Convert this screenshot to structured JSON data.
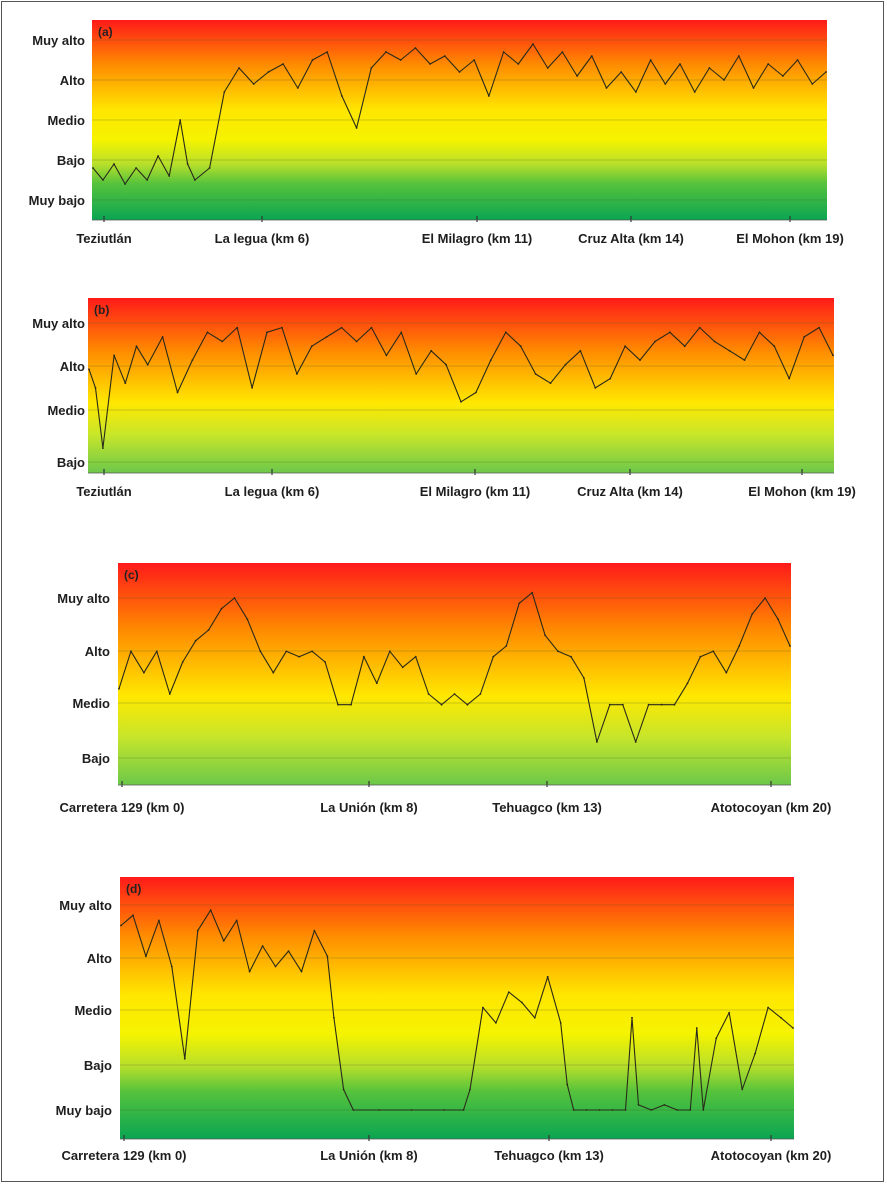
{
  "chart_data": [
    {
      "type": "line",
      "panel_label": "(a)",
      "levels": [
        "Muy alto",
        "Alto",
        "Medio",
        "Bajo",
        "Muy bajo"
      ],
      "x_ticks": [
        "Teziutlán",
        "La legua (km 6)",
        "El Milagro (km 11)",
        "Cruz Alta (km 14)",
        "El Mohon (km 19)"
      ],
      "x_tick_km": [
        0,
        6,
        11,
        14,
        19
      ],
      "xlim": [
        0,
        20
      ],
      "ylim": [
        0.5,
        5.2
      ],
      "series": [
        {
          "x": [
            0,
            0.3,
            0.6,
            0.9,
            1.2,
            1.5,
            1.8,
            2.1,
            2.4,
            2.6,
            2.8,
            3.2,
            3.6,
            4,
            4.4,
            4.8,
            5.2,
            5.6,
            6,
            6.4,
            6.8,
            7.2,
            7.6,
            8,
            8.4,
            8.8,
            9.2,
            9.6,
            10,
            10.4,
            10.8,
            11.2,
            11.6,
            12,
            12.4,
            12.8,
            13.2,
            13.6,
            14,
            14.4,
            14.8,
            15.2,
            15.6,
            16,
            16.4,
            16.8,
            17.2,
            17.6,
            18,
            18.4,
            18.8,
            19.2,
            19.6,
            20
          ],
          "y": [
            1.8,
            1.5,
            1.9,
            1.4,
            1.8,
            1.5,
            2.1,
            1.6,
            3,
            1.9,
            1.5,
            1.8,
            3.7,
            4.3,
            3.9,
            4.2,
            4.4,
            3.8,
            4.5,
            4.7,
            3.6,
            2.8,
            4.3,
            4.7,
            4.5,
            4.8,
            4.4,
            4.6,
            4.2,
            4.5,
            3.6,
            4.7,
            4.4,
            4.9,
            4.3,
            4.7,
            4.1,
            4.6,
            3.8,
            4.2,
            3.7,
            4.5,
            3.9,
            4.4,
            3.7,
            4.3,
            4,
            4.6,
            3.8,
            4.4,
            4.1,
            4.5,
            3.9,
            4.2
          ]
        }
      ]
    },
    {
      "type": "line",
      "panel_label": "(b)",
      "levels": [
        "Muy alto",
        "Alto",
        "Medio",
        "Bajo"
      ],
      "x_ticks": [
        "Teziutlán",
        "La legua (km 6)",
        "El Milagro (km 11)",
        "Cruz Alta (km 14)",
        "El Mohon (km 19)"
      ],
      "x_tick_km": [
        0,
        6,
        11,
        14,
        19
      ],
      "xlim": [
        0,
        20
      ],
      "ylim": [
        0.8,
        4.3
      ],
      "series": [
        {
          "x": [
            0,
            0.2,
            0.4,
            0.7,
            1,
            1.3,
            1.6,
            2,
            2.4,
            2.8,
            3.2,
            3.6,
            4,
            4.4,
            4.8,
            5.2,
            5.6,
            6,
            6.4,
            6.8,
            7.2,
            7.6,
            8,
            8.4,
            8.8,
            9.2,
            9.6,
            10,
            10.4,
            10.8,
            11.2,
            11.6,
            12,
            12.4,
            12.8,
            13.2,
            13.6,
            14,
            14.4,
            14.8,
            15.2,
            15.6,
            16,
            16.4,
            16.8,
            17.2,
            17.6,
            18,
            18.4,
            18.8,
            19.2,
            19.6,
            20
          ],
          "y": [
            3,
            2.6,
            1.3,
            3.3,
            2.7,
            3.5,
            3.1,
            3.7,
            2.5,
            3.2,
            3.8,
            3.6,
            3.9,
            2.6,
            3.8,
            3.9,
            2.9,
            3.5,
            3.7,
            3.9,
            3.6,
            3.9,
            3.3,
            3.8,
            2.9,
            3.4,
            3.1,
            2.3,
            2.5,
            3.2,
            3.8,
            3.5,
            2.9,
            2.7,
            3.1,
            3.4,
            2.6,
            2.8,
            3.5,
            3.2,
            3.6,
            3.8,
            3.5,
            3.9,
            3.6,
            3.4,
            3.2,
            3.8,
            3.5,
            2.8,
            3.7,
            3.9,
            3.3
          ]
        }
      ]
    },
    {
      "type": "line",
      "panel_label": "(c)",
      "levels": [
        "Muy alto",
        "Alto",
        "Medio",
        "Bajo"
      ],
      "x_ticks": [
        "Carretera 129 (km 0)",
        "La Unión (km 8)",
        "Tehuagco (km 13)",
        "Atotocoyan (km 20)"
      ],
      "x_tick_km": [
        0,
        8,
        13,
        20
      ],
      "xlim": [
        0,
        20.8
      ],
      "ylim": [
        0.5,
        4.4
      ],
      "series": [
        {
          "x": [
            0,
            0.4,
            0.8,
            1.2,
            1.6,
            2,
            2.4,
            2.8,
            3.2,
            3.6,
            4,
            4.4,
            4.8,
            5.2,
            5.6,
            6,
            6.4,
            6.8,
            7.2,
            7.6,
            8,
            8.4,
            8.8,
            9.2,
            9.6,
            10,
            10.4,
            10.8,
            11.2,
            11.6,
            12,
            12.4,
            12.8,
            13.2,
            13.6,
            14,
            14.4,
            14.8,
            15.2,
            15.6,
            16,
            16.4,
            16.8,
            17.2,
            17.6,
            18,
            18.4,
            18.8,
            19.2,
            19.6,
            20,
            20.4,
            20.8
          ],
          "y": [
            2.3,
            3,
            2.6,
            3,
            2.2,
            2.8,
            3.2,
            3.4,
            3.8,
            4,
            3.6,
            3,
            2.6,
            3,
            2.9,
            3,
            2.8,
            2,
            2,
            2.9,
            2.4,
            3,
            2.7,
            2.9,
            2.2,
            2,
            2.2,
            2,
            2.2,
            2.9,
            3.1,
            3.9,
            4.1,
            3.3,
            3,
            2.9,
            2.5,
            1.3,
            2,
            2,
            1.3,
            2,
            2,
            2,
            2.4,
            2.9,
            3,
            2.6,
            3.1,
            3.7,
            4,
            3.6,
            3.1
          ]
        }
      ]
    },
    {
      "type": "line",
      "panel_label": "(d)",
      "levels": [
        "Muy alto",
        "Alto",
        "Medio",
        "Bajo",
        "Muy bajo"
      ],
      "x_ticks": [
        "Carretera 129 (km 0)",
        "La Unión (km 8)",
        "Tehuagco (km 13)",
        "Atotocoyan (km 20)"
      ],
      "x_tick_km": [
        0,
        8,
        13,
        20
      ],
      "xlim": [
        0,
        20.8
      ],
      "ylim": [
        0.5,
        5.6
      ],
      "series": [
        {
          "x": [
            0,
            0.4,
            0.8,
            1.2,
            1.6,
            2,
            2.4,
            2.8,
            3.2,
            3.6,
            4,
            4.4,
            4.8,
            5.2,
            5.6,
            6,
            6.4,
            6.6,
            6.9,
            7.2,
            8,
            9,
            10,
            10.6,
            10.8,
            11.2,
            11.6,
            12,
            12.4,
            12.8,
            13.2,
            13.6,
            13.8,
            14,
            14.4,
            14.8,
            15.2,
            15.6,
            15.8,
            16,
            16.4,
            16.8,
            17.2,
            17.6,
            17.8,
            18,
            18.4,
            18.8,
            19.2,
            19.6,
            20,
            20.4,
            20.8
          ],
          "y": [
            4.6,
            4.8,
            4,
            4.7,
            3.8,
            2,
            4.5,
            4.9,
            4.3,
            4.7,
            3.7,
            4.2,
            3.8,
            4.1,
            3.7,
            4.5,
            4,
            2.8,
            1.4,
            1,
            1,
            1,
            1,
            1,
            1.4,
            3,
            2.7,
            3.3,
            3.1,
            2.8,
            3.6,
            2.7,
            1.5,
            1,
            1,
            1,
            1,
            1,
            2.8,
            1.1,
            1,
            1.1,
            1,
            1,
            2.6,
            1,
            2.4,
            2.9,
            1.4,
            2.1,
            3,
            2.8,
            2.6
          ]
        }
      ]
    }
  ]
}
